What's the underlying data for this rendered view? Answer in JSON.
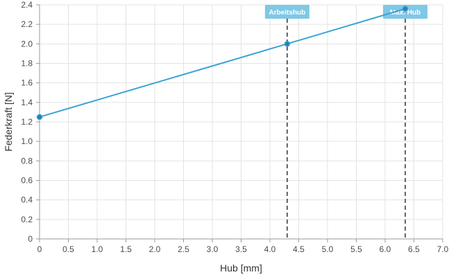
{
  "chart_data": {
    "type": "line",
    "title": "",
    "xlabel": "Hub [mm]",
    "ylabel": "Federkraft [N]",
    "xlim": [
      0,
      7.0
    ],
    "ylim": [
      0,
      2.4
    ],
    "x_ticks": [
      "0",
      "0.5",
      "1.0",
      "1.5",
      "2.0",
      "2.5",
      "3.0",
      "3.5",
      "4.0",
      "4.5",
      "5.0",
      "5.5",
      "6.0",
      "6.5",
      "7.0"
    ],
    "x_tick_values": [
      0,
      0.5,
      1.0,
      1.5,
      2.0,
      2.5,
      3.0,
      3.5,
      4.0,
      4.5,
      5.0,
      5.5,
      6.0,
      6.5,
      7.0
    ],
    "y_ticks": [
      "0",
      "0.2",
      "0.4",
      "0.6",
      "0.8",
      "1.0",
      "1.2",
      "1.4",
      "1.6",
      "1.8",
      "2.0",
      "2.2",
      "2.4"
    ],
    "y_tick_values": [
      0,
      0.2,
      0.4,
      0.6,
      0.8,
      1.0,
      1.2,
      1.4,
      1.6,
      1.8,
      2.0,
      2.2,
      2.4
    ],
    "grid": true,
    "series": [
      {
        "x": [
          0,
          4.3,
          6.35
        ],
        "y": [
          1.25,
          2.0,
          2.36
        ],
        "color": "#3aa3d4"
      }
    ],
    "markers": [
      {
        "label": "Arbeitshub",
        "x": 4.3
      },
      {
        "label": "Max. Hub",
        "x": 6.35
      }
    ],
    "colors": {
      "line": "#3aa3d4",
      "point_fill": "#2a7fa8",
      "grid": "#e3e3e3",
      "axis": "#9a9a9a",
      "marker_line": "#333333",
      "marker_label_bg": "#7fc8e6"
    }
  }
}
